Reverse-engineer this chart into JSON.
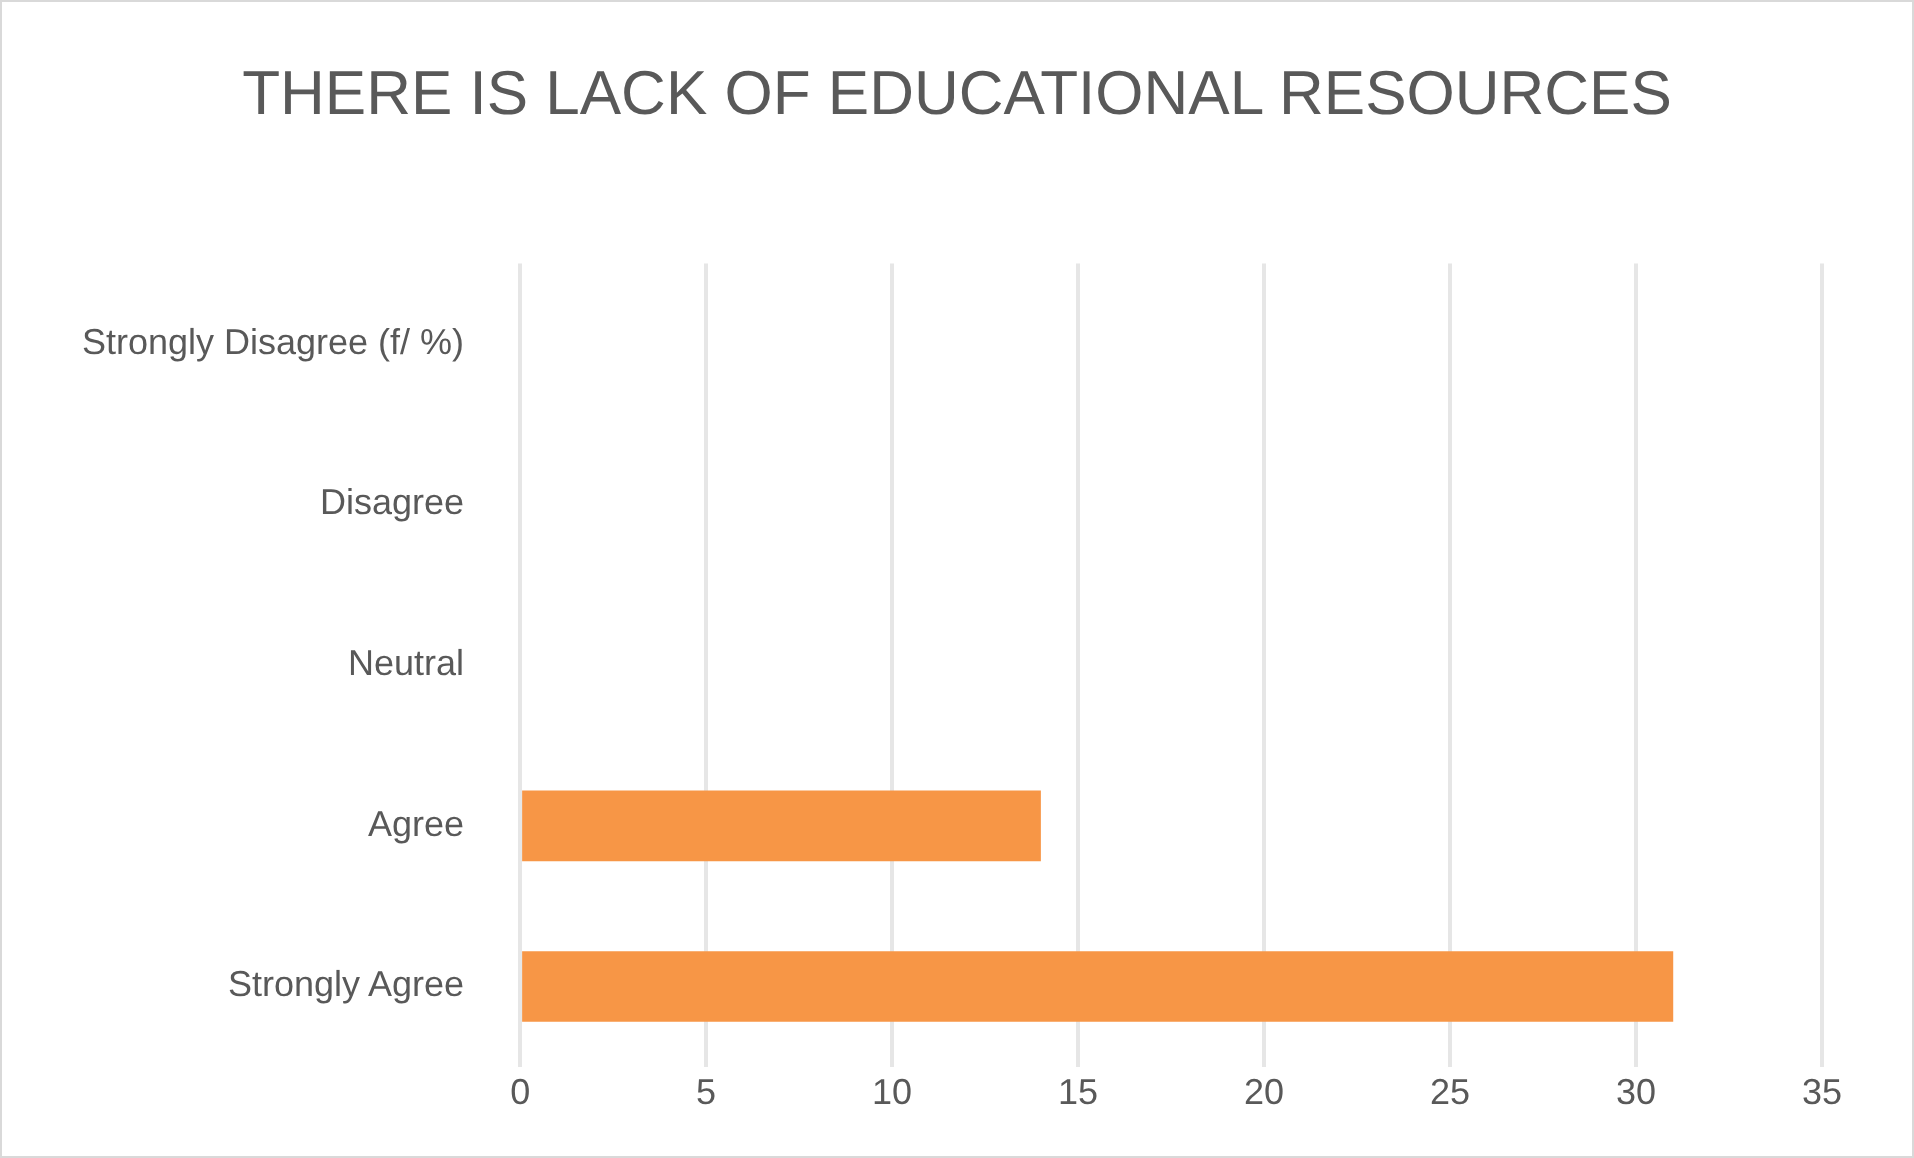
{
  "chart_data": {
    "type": "bar",
    "orientation": "horizontal",
    "title": "THERE IS LACK OF EDUCATIONAL RESOURCES",
    "categories": [
      "Strongly Disagree (f/ %)",
      "Disagree",
      "Neutral",
      "Agree",
      "Strongly Agree"
    ],
    "values": [
      0,
      0,
      0,
      14,
      31
    ],
    "color": "#f79646",
    "xlim": [
      0,
      35
    ],
    "xticks": [
      0,
      5,
      10,
      15,
      20,
      25,
      30,
      35
    ],
    "grid": "x",
    "legend": false
  }
}
